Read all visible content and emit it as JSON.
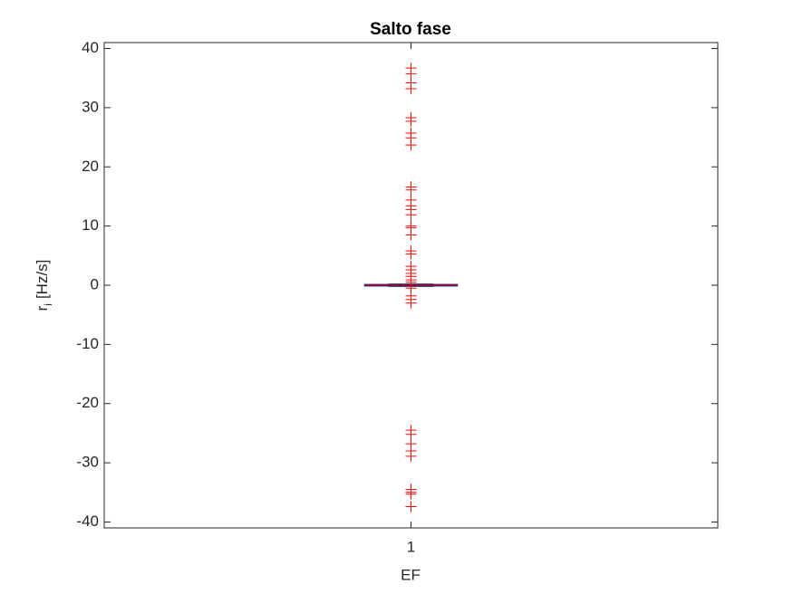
{
  "chart_data": {
    "type": "box",
    "title": "Salto fase",
    "xlabel": "EF",
    "ylabel_parts": [
      "r",
      "i",
      "[Hz/s]"
    ],
    "categories": [
      "1"
    ],
    "ylim": [
      -41,
      41
    ],
    "yticks": [
      -40,
      -30,
      -20,
      -10,
      0,
      10,
      20,
      30,
      40
    ],
    "box": {
      "whisker_low": -0.2,
      "q1": -0.1,
      "median": 0,
      "q3": 0.1,
      "whisker_high": 0.2
    },
    "box_color": "#1f1f7a",
    "median_color": "#ff0000",
    "outlier_color": "#ff0000",
    "outliers": [
      36.7,
      35.7,
      34.2,
      33.2,
      28.3,
      27.7,
      25.7,
      24.9,
      23.7,
      16.6,
      16.1,
      14.4,
      13.4,
      12.8,
      11.9,
      10.0,
      9.7,
      8.5,
      5.8,
      5.3,
      3.2,
      2.6,
      2.0,
      1.5,
      0.9,
      0.5,
      -0.5,
      -1.8,
      -2.4,
      -3.0,
      -24.5,
      -25.2,
      -26.8,
      -28.0,
      -28.9,
      -34.5,
      -35.0,
      -35.3,
      -37.4
    ]
  }
}
